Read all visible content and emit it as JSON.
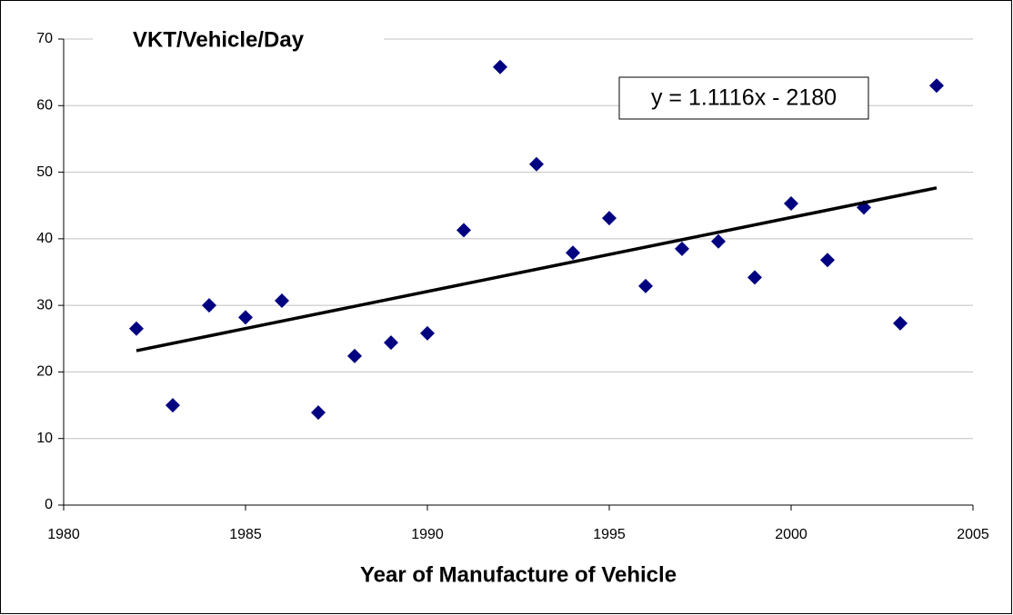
{
  "chart_data": {
    "type": "scatter",
    "title": "VKT/Vehicle/Day",
    "x_label": "Year of Manufacture of Vehicle",
    "series": [
      {
        "name": "VKT/Vehicle/Day",
        "color": "#000080",
        "x": [
          1982,
          1983,
          1984,
          1985,
          1986,
          1987,
          1988,
          1989,
          1990,
          1991,
          1992,
          1993,
          1994,
          1995,
          1996,
          1997,
          1998,
          1999,
          2000,
          2001,
          2002,
          2003,
          2004
        ],
        "values": [
          26.5,
          15.0,
          30.0,
          28.2,
          30.7,
          13.9,
          22.4,
          24.4,
          25.8,
          41.3,
          65.8,
          51.2,
          37.9,
          43.1,
          32.9,
          38.5,
          39.6,
          34.2,
          45.3,
          36.8,
          44.7,
          27.3,
          63.0
        ]
      }
    ],
    "trendline": {
      "label": "y = 1.1116x - 2180",
      "slope": 1.1116,
      "intercept": -2180,
      "color": "#000000"
    },
    "xlim": [
      1980,
      2005
    ],
    "xticks": [
      1980,
      1985,
      1990,
      1995,
      2000,
      2005
    ],
    "ylim": [
      0,
      70
    ],
    "yticks": [
      0,
      10,
      20,
      30,
      40,
      50,
      60,
      70
    ],
    "grid": true
  }
}
